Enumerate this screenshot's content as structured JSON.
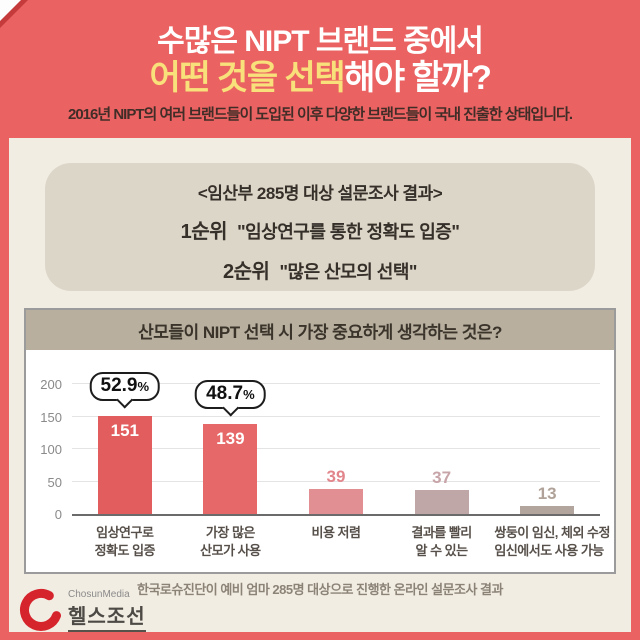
{
  "header": {
    "title_line1": "수많은 NIPT 브랜드 중에서",
    "title_line2_highlight": "어떤 것을 선택",
    "title_line2_rest": "해야 할까?",
    "subtitle": "2016년 NIPT의 여러 브랜드들이 도입된 이후 다양한 브랜드들이 국내 진출한 상태입니다.",
    "bg_color": "#eb6262",
    "highlight_color": "#f8e17a"
  },
  "survey_card": {
    "heading": "<임산부 285명 대상 설문조사 결과>",
    "ranks": [
      {
        "label": "1순위",
        "text": "\"임상연구를 통한 정확도 입증\""
      },
      {
        "label": "2순위",
        "text": "\"많은 산모의 선택\""
      }
    ]
  },
  "chart_data": {
    "type": "bar",
    "title": "산모들이 NIPT 선택 시 가장 중요하게 생각하는 것은?",
    "categories": [
      "임상연구로\n정확도 입증",
      "가장 많은\n산모가 사용",
      "비용 저렴",
      "결과를 빨리\n알 수 있는",
      "쌍둥이 임신, 체외 수정\n임신에서도 사용 가능"
    ],
    "values": [
      151,
      139,
      39,
      37,
      13
    ],
    "callouts": [
      "52.9%",
      "48.7%",
      null,
      null,
      null
    ],
    "bar_colors": [
      "#e25d5d",
      "#e76868",
      "#e28f93",
      "#bfa7a7",
      "#b2a59d"
    ],
    "value_label_colors": [
      "#ffffff",
      "#ffffff",
      "#e2868c",
      "#c7a4a8",
      "#b0a298"
    ],
    "value_label_inside": [
      true,
      true,
      false,
      false,
      false
    ],
    "yticks": [
      0,
      50,
      100,
      150,
      200
    ],
    "ylim": [
      0,
      200
    ],
    "grid": true,
    "legend": null,
    "xlabel": "",
    "ylabel": ""
  },
  "footer": {
    "caption": "한국로슈진단이 예비 엄마 285명 대상으로 진행한 온라인 설문조사 결과",
    "logo_brand": "ChosunMedia",
    "logo_name": "헬스조선",
    "logo_color": "#d5242c"
  }
}
